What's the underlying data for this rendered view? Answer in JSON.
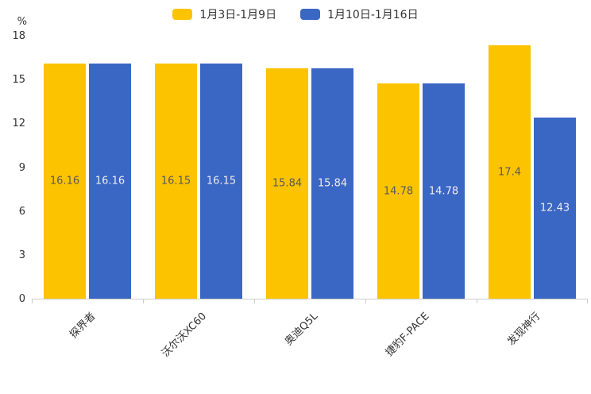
{
  "chart_data": {
    "type": "bar",
    "title": "",
    "categories": [
      "探界者",
      "沃尔沃XC60",
      "奥迪Q5L",
      "捷豹F-PACE",
      "发现神行"
    ],
    "series": [
      {
        "name": "1月3日-1月9日",
        "color": "#FBC300",
        "label_color": "#595959",
        "values": [
          16.16,
          16.15,
          15.84,
          14.78,
          17.4
        ]
      },
      {
        "name": "1月10日-1月16日",
        "color": "#3A66C4",
        "label_color": "#EDEDED",
        "values": [
          16.16,
          16.15,
          15.84,
          14.78,
          12.43
        ]
      }
    ],
    "xlabel": "",
    "ylabel": "",
    "ylabel_unit": "%",
    "yticks": [
      0,
      3,
      6,
      9,
      12,
      15,
      18
    ],
    "ylim": [
      0,
      18
    ],
    "grid": false,
    "legend_position": "top"
  }
}
